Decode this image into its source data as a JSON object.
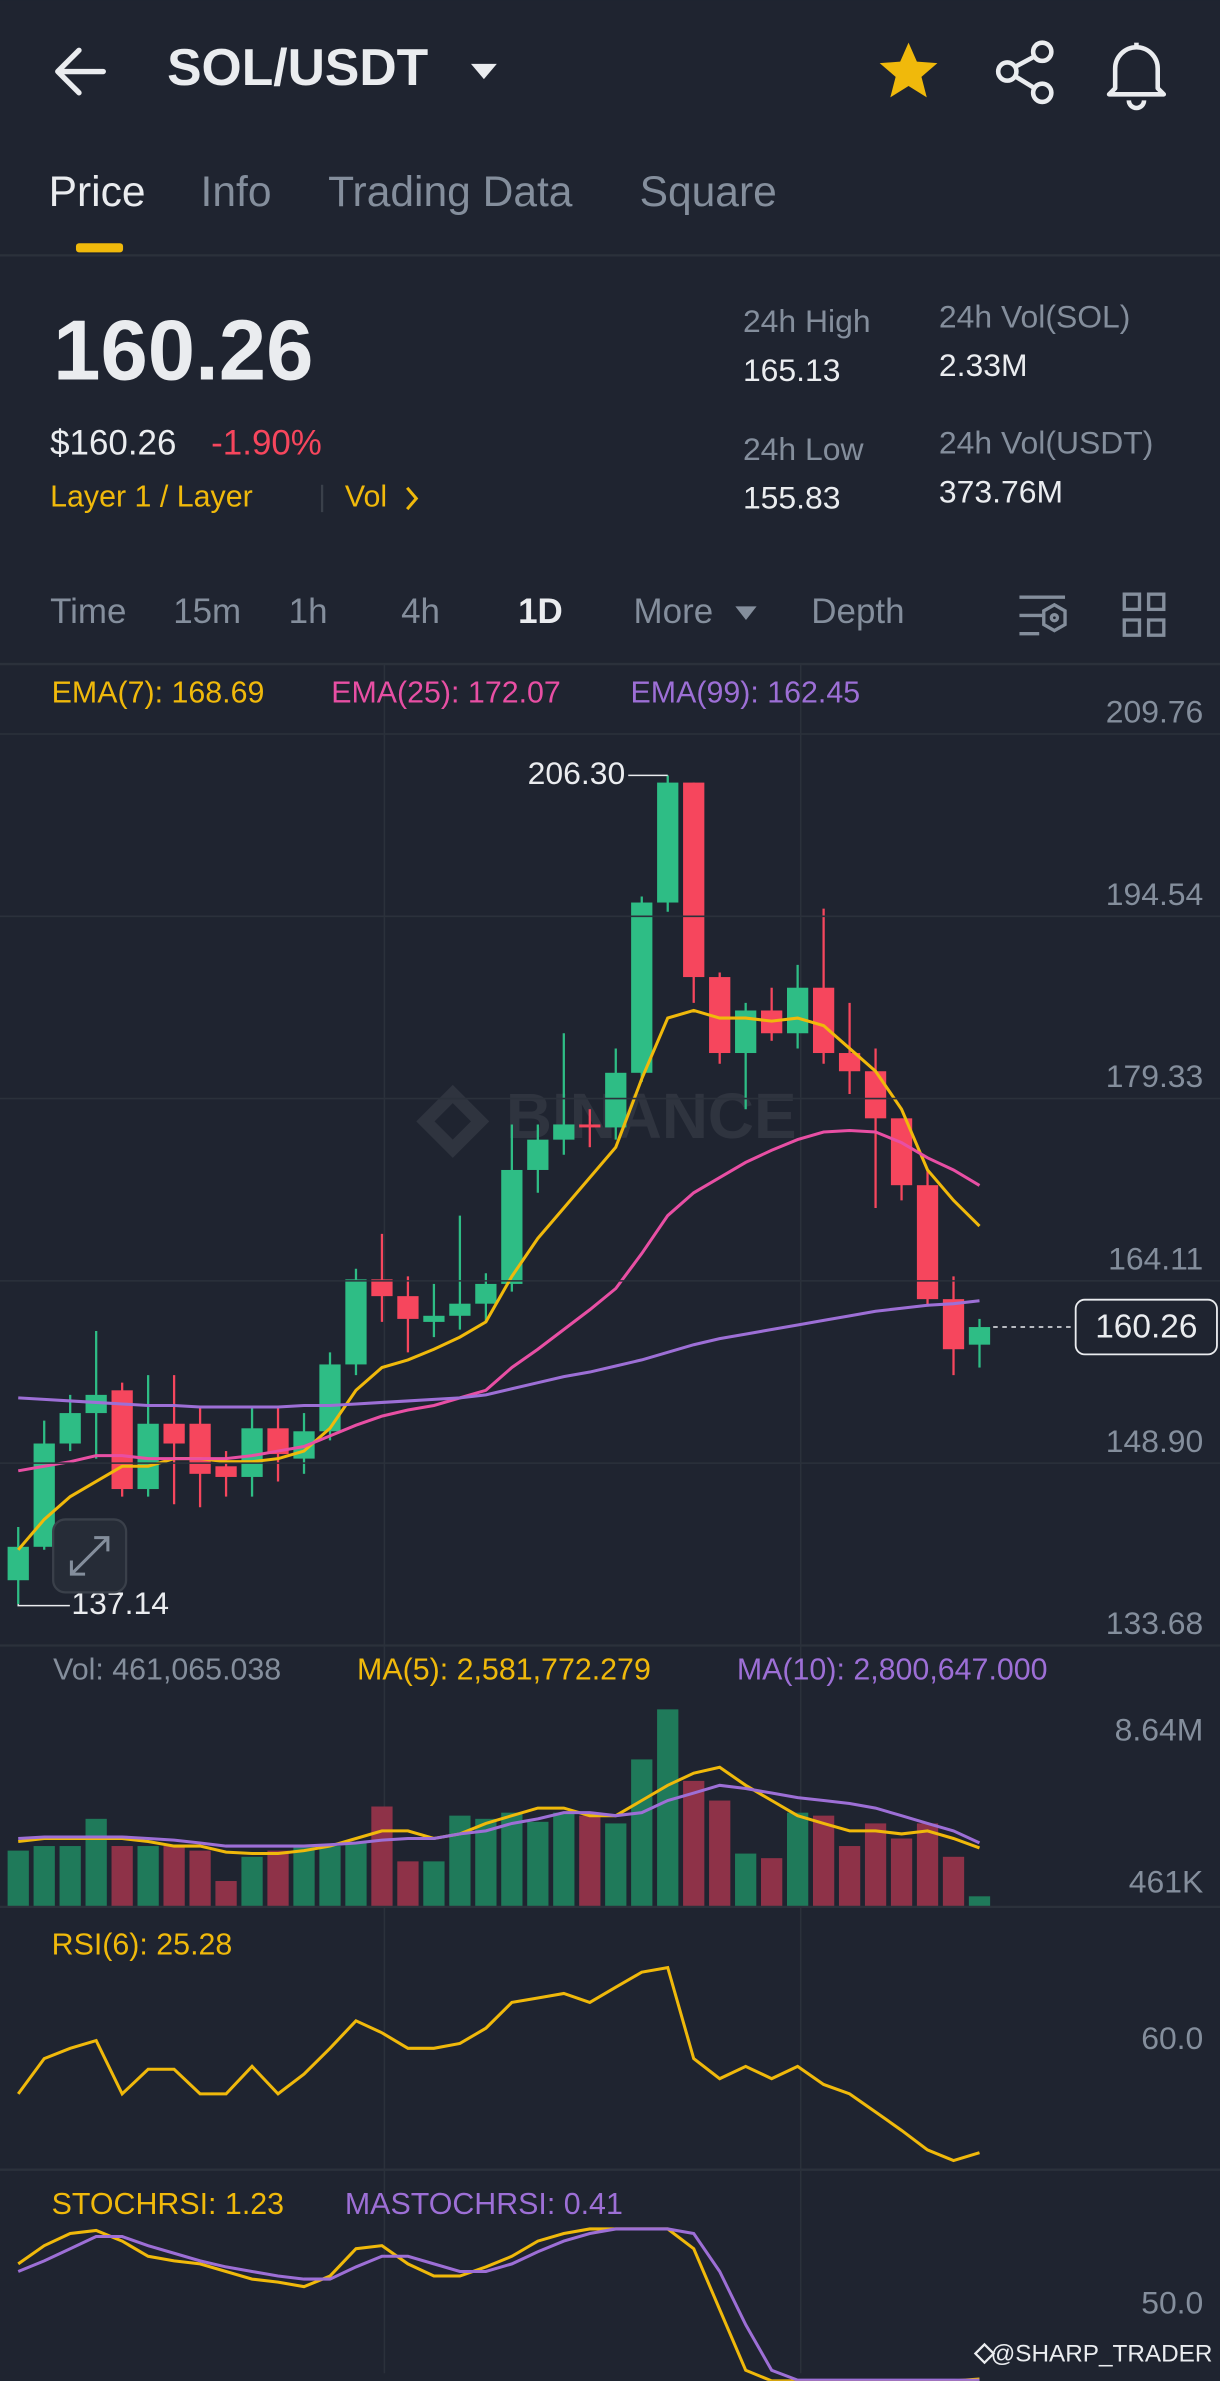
{
  "header": {
    "pair": "SOL/USDT",
    "tabs": [
      "Price",
      "Info",
      "Trading Data",
      "Square"
    ]
  },
  "ticker": {
    "price": "160.26",
    "usd": "$160.26",
    "change": "-1.90%",
    "tag": "Layer 1 / Layer",
    "vol_link": "Vol",
    "stats": [
      {
        "label": "24h High",
        "value": "165.13"
      },
      {
        "label": "24h Vol(SOL)",
        "value": "2.33M"
      },
      {
        "label": "24h Low",
        "value": "155.83"
      },
      {
        "label": "24h Vol(USDT)",
        "value": "373.76M"
      }
    ]
  },
  "intervals": [
    "Time",
    "15m",
    "1h",
    "4h",
    "1D",
    "More",
    "Depth"
  ],
  "watermark": "BINANCE",
  "credit": "@SHARP_TRADER",
  "chart_data": [
    {
      "type": "candlestick",
      "up_color": "#2ebd85",
      "down_color": "#f6465d",
      "grid": true,
      "open": [
        139.13,
        141.92,
        150.54,
        153.08,
        154.98,
        146.74,
        152.19,
        152.19,
        148.64,
        147.75,
        151.81,
        149.28,
        151.56,
        157.14,
        164.24,
        162.84,
        160.69,
        161.2,
        162.21,
        163.86,
        173.37,
        175.9,
        177.17,
        176.92,
        181.48,
        195.69,
        205.7,
        189.47,
        183.13,
        186.68,
        184.78,
        188.58,
        183.13,
        181.61,
        177.68,
        172.1,
        162.59,
        158.79
      ],
      "high": [
        143.57,
        152.45,
        154.6,
        159.93,
        155.62,
        156.25,
        156.25,
        153.71,
        149.91,
        153.71,
        153.71,
        153.08,
        158.15,
        165.13,
        168.04,
        164.49,
        163.86,
        169.56,
        164.75,
        177.17,
        177.17,
        184.78,
        178.44,
        183.51,
        196.19,
        206.3,
        205.7,
        189.85,
        187.32,
        188.58,
        190.49,
        195.18,
        187.32,
        183.51,
        177.68,
        173.37,
        164.49,
        160.94
      ],
      "low": [
        137.14,
        141.67,
        149.91,
        149.28,
        146.11,
        146.11,
        145.47,
        145.22,
        146.11,
        146.11,
        147.37,
        148.01,
        150.8,
        156.25,
        160.69,
        158.15,
        159.42,
        160.05,
        160.69,
        163.22,
        171.47,
        174.64,
        175.27,
        175.9,
        180.72,
        194.92,
        187.32,
        182.24,
        178.44,
        184.15,
        183.51,
        182.24,
        179.71,
        170.2,
        170.83,
        161.96,
        156.25,
        156.88
      ],
      "close": [
        141.92,
        150.54,
        153.08,
        154.6,
        146.74,
        152.19,
        150.54,
        148.01,
        147.75,
        151.81,
        149.66,
        151.56,
        157.14,
        164.24,
        162.84,
        160.94,
        161.2,
        162.21,
        163.86,
        173.37,
        175.9,
        177.17,
        176.92,
        181.48,
        195.69,
        205.7,
        189.47,
        183.13,
        186.68,
        184.78,
        188.58,
        183.13,
        181.61,
        177.68,
        172.1,
        162.59,
        158.41,
        160.26
      ],
      "ylim": [
        133.68,
        209.76
      ],
      "yticks": [
        209.76,
        194.54,
        179.33,
        164.11,
        {
          "value": 148.9,
          "label": "148.90"
        },
        133.68
      ],
      "current_price": 160.26,
      "annotations": [
        {
          "value": 206.3,
          "label": "206.30"
        },
        137.14
      ],
      "series": [
        {
          "name": "EMA(7): 168.69",
          "color": "#f0b90b",
          "values": [
            141.67,
            144.2,
            146.11,
            147.37,
            148.64,
            148.64,
            149.28,
            149.28,
            149.02,
            149.02,
            149.28,
            149.91,
            151.81,
            154.98,
            156.88,
            157.52,
            158.41,
            159.42,
            160.69,
            164.49,
            167.66,
            170.2,
            172.73,
            175.27,
            180.98,
            186.05,
            186.68,
            186.05,
            186.05,
            185.79,
            186.05,
            185.41,
            183.51,
            181.61,
            178.44,
            173.37,
            170.83,
            168.69
          ]
        },
        {
          "name": "EMA(25): 172.07",
          "color": "#e84fa4",
          "values": [
            148.26,
            148.64,
            149.02,
            149.53,
            149.53,
            149.28,
            149.28,
            149.28,
            149.28,
            149.53,
            149.91,
            150.29,
            151.18,
            152.07,
            152.83,
            153.33,
            153.71,
            154.35,
            154.98,
            156.88,
            158.41,
            160.05,
            161.7,
            163.48,
            166.39,
            169.56,
            171.47,
            172.73,
            174.0,
            175.02,
            175.9,
            176.54,
            176.67,
            176.54,
            175.65,
            174.38,
            173.37,
            172.07
          ]
        },
        {
          "name": "EMA(99): 162.45",
          "color": "#9d6fd6",
          "values": [
            154.35,
            154.22,
            154.09,
            153.97,
            153.84,
            153.71,
            153.71,
            153.59,
            153.59,
            153.59,
            153.59,
            153.71,
            153.71,
            153.84,
            153.97,
            154.09,
            154.22,
            154.35,
            154.6,
            155.11,
            155.62,
            156.12,
            156.5,
            157.01,
            157.52,
            158.15,
            158.79,
            159.29,
            159.67,
            160.05,
            160.43,
            160.82,
            161.2,
            161.58,
            161.83,
            162.08,
            162.21,
            162.45
          ]
        }
      ]
    },
    {
      "type": "bar",
      "legend": "Vol: 461,065.038",
      "up_color": "#1f7a5a",
      "down_color": "#8e3248",
      "values": [
        2460000,
        2660000,
        2660000,
        3850000,
        2660000,
        2660000,
        2660000,
        2460000,
        1130000,
        2190000,
        2460000,
        2660000,
        2660000,
        2790000,
        4390000,
        1990000,
        1990000,
        3990000,
        3850000,
        4120000,
        3720000,
        4120000,
        3990000,
        3650000,
        6450000,
        8640000,
        5510000,
        4650000,
        2330000,
        2130000,
        4120000,
        3990000,
        2660000,
        3650000,
        2990000,
        3650000,
        2190000,
        461065.038
      ],
      "ylim": [
        0,
        8640000
      ],
      "yticks": [
        {
          "value": 8640000,
          "label": "8.64M"
        },
        {
          "value": 461065.038,
          "label": "461K"
        }
      ],
      "series": [
        {
          "name": "MA(5): 2,581,772.279",
          "color": "#f0b90b",
          "values": [
            2860000,
            2990000,
            2990000,
            2990000,
            2990000,
            2860000,
            2660000,
            2660000,
            2390000,
            2330000,
            2330000,
            2460000,
            2660000,
            2990000,
            3320000,
            3320000,
            2990000,
            3190000,
            3650000,
            3990000,
            4320000,
            4320000,
            3990000,
            3990000,
            4650000,
            5320000,
            5850000,
            6110000,
            5320000,
            4650000,
            3990000,
            3650000,
            3320000,
            3320000,
            3190000,
            3320000,
            2990000,
            2581772.279
          ]
        },
        {
          "name": "MA(10): 2,800,647.000",
          "color": "#9d6fd6",
          "values": [
            2990000,
            3060000,
            3060000,
            3060000,
            3060000,
            2990000,
            2920000,
            2790000,
            2660000,
            2660000,
            2660000,
            2660000,
            2720000,
            2790000,
            2920000,
            2990000,
            2990000,
            3190000,
            3320000,
            3650000,
            3850000,
            4120000,
            4120000,
            3990000,
            4120000,
            4650000,
            4980000,
            5320000,
            5180000,
            4980000,
            4780000,
            4650000,
            4520000,
            4320000,
            3990000,
            3650000,
            3320000,
            2800647
          ]
        }
      ]
    },
    {
      "type": "line",
      "ylim": [
        20,
        100
      ],
      "yticks": [
        {
          "value": 60,
          "label": "60.0"
        }
      ],
      "series": [
        {
          "name": "RSI(6): 25.28",
          "color": "#f0b90b",
          "values": [
            43.5,
            54.4,
            57.6,
            60.0,
            43.5,
            51.1,
            51.1,
            43.5,
            43.5,
            52.0,
            43.5,
            49.6,
            57.6,
            66.1,
            62.4,
            57.6,
            57.6,
            59.1,
            63.8,
            71.8,
            73.2,
            74.6,
            71.8,
            76.5,
            81.2,
            82.6,
            54.4,
            48.2,
            52.0,
            48.2,
            52.0,
            46.4,
            43.5,
            37.9,
            32.2,
            26.1,
            22.8,
            25.28
          ]
        }
      ]
    },
    {
      "type": "line",
      "ylim": [
        0,
        100
      ],
      "yticks": [
        {
          "value": 50,
          "label": "50.0"
        }
      ],
      "series": [
        {
          "name": "STOCHRSI: 1.23",
          "color": "#f0b90b",
          "values": [
            77,
            89,
            97,
            99,
            92,
            82,
            79,
            77,
            72,
            67,
            65,
            62,
            69,
            87,
            89,
            77,
            69,
            69,
            75,
            82,
            92,
            97,
            100,
            100,
            100,
            100,
            87,
            47,
            7,
            0,
            0,
            0,
            0,
            0,
            0,
            0,
            0,
            1.23
          ]
        },
        {
          "name": "MASTOCHRSI: 0.41",
          "color": "#9d6fd6",
          "values": [
            72,
            79,
            87,
            95,
            95,
            89,
            84,
            79,
            75,
            72,
            69,
            67,
            67,
            75,
            82,
            82,
            77,
            72,
            72,
            77,
            85,
            92,
            97,
            100,
            100,
            100,
            97,
            72,
            37,
            7,
            0.5,
            0.5,
            0.5,
            0.5,
            0.5,
            0.5,
            0.5,
            0.41
          ]
        }
      ]
    }
  ]
}
